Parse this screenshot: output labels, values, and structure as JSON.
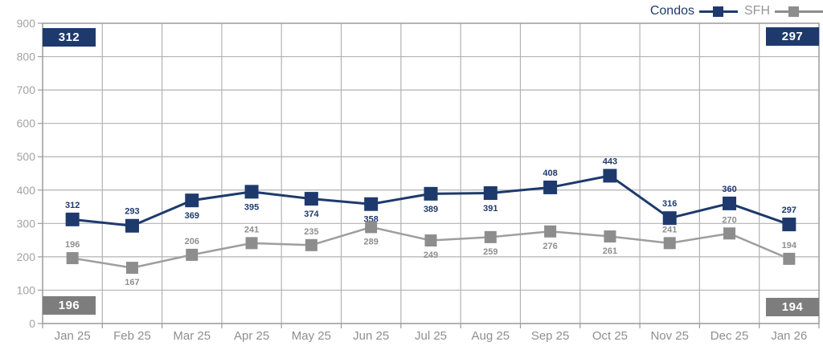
{
  "chart_data": {
    "type": "line",
    "title": "",
    "xlabel": "",
    "ylabel": "",
    "categories": [
      "Jan 25",
      "Feb 25",
      "Mar 25",
      "Apr 25",
      "May 25",
      "Jun 25",
      "Jul 25",
      "Aug 25",
      "Sep 25",
      "Oct 25",
      "Nov 25",
      "Dec 25",
      "Jan 26"
    ],
    "series": [
      {
        "name": "Condos",
        "color": "#1e3a6d",
        "line_color": "#1e3a6d",
        "label_color": "#1e3a6d",
        "line_width": 3,
        "marker_size": 17,
        "values": [
          312,
          293,
          369,
          395,
          374,
          358,
          389,
          391,
          408,
          443,
          316,
          360,
          297
        ],
        "label_positions": [
          "above",
          "above",
          "below",
          "below",
          "below",
          "below",
          "below",
          "below",
          "above",
          "above",
          "above",
          "above",
          "above"
        ]
      },
      {
        "name": "SFH",
        "color": "#8d8d8d",
        "line_color": "#9e9e9e",
        "label_color": "#8f8f8f",
        "line_width": 2.5,
        "marker_size": 15,
        "values": [
          196,
          167,
          206,
          241,
          235,
          289,
          249,
          259,
          276,
          261,
          241,
          270,
          194
        ],
        "label_positions": [
          "above",
          "below",
          "above",
          "above",
          "above",
          "below",
          "below",
          "below",
          "below",
          "below",
          "above",
          "above",
          "above"
        ]
      }
    ],
    "ylim": [
      0,
      900
    ],
    "ytick_step": 100,
    "ytick_labels": [
      "0",
      "100",
      "200",
      "300",
      "400",
      "500",
      "600",
      "700",
      "800",
      "900"
    ],
    "grid": true,
    "grid_color": "#b3b3b3",
    "border_color": "#9b9b9b",
    "legend_position": "top-right"
  },
  "legend": {
    "items": [
      {
        "label": "Condos",
        "text_color": "#1e3a6d"
      },
      {
        "label": "SFH",
        "text_color": "#969696"
      }
    ]
  },
  "badges": [
    {
      "value": "312",
      "corner": "top-left",
      "color": "#1e3a6d",
      "series": "Condos"
    },
    {
      "value": "297",
      "corner": "top-right",
      "color": "#1e3a6d",
      "series": "Condos"
    },
    {
      "value": "196",
      "corner": "bottom-left",
      "color": "#7d7d7d",
      "series": "SFH"
    },
    {
      "value": "194",
      "corner": "bottom-right",
      "color": "#7d7d7d",
      "series": "SFH"
    }
  ]
}
